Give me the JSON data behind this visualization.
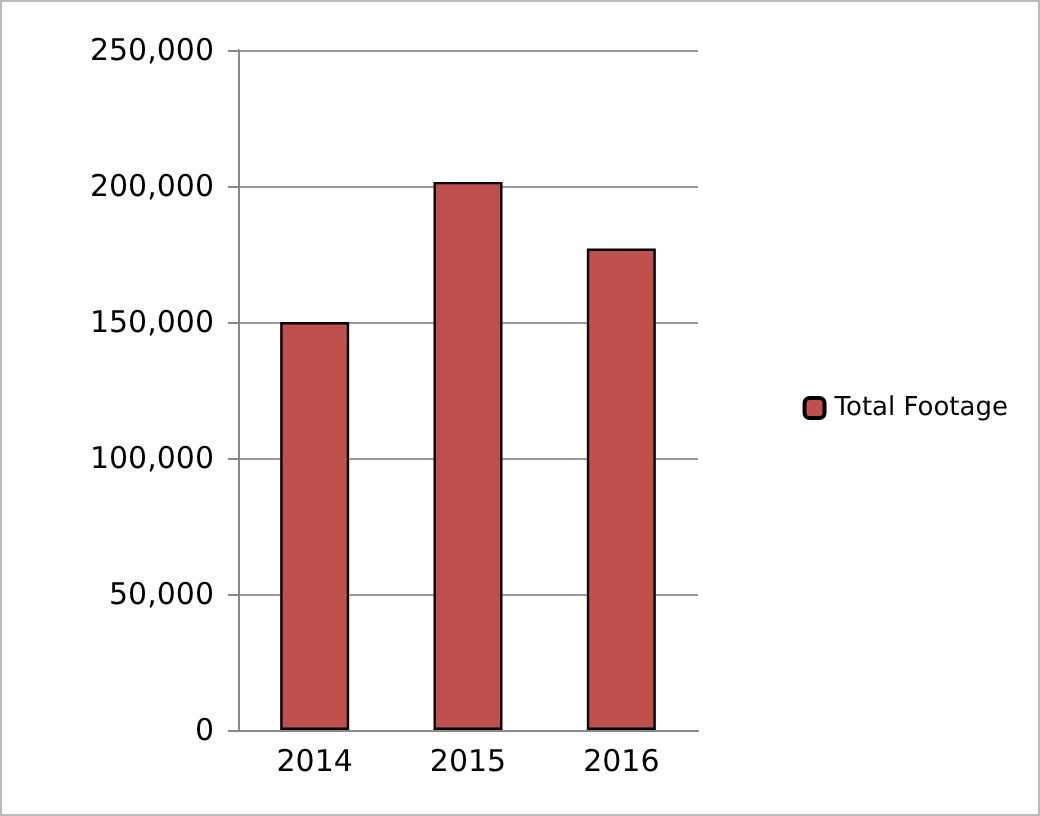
{
  "chart_data": {
    "type": "bar",
    "categories": [
      "2014",
      "2015",
      "2016"
    ],
    "series": [
      {
        "name": "Total Footage",
        "color": "#c0504d",
        "values": [
          150000,
          201500,
          177000
        ]
      }
    ],
    "ylim": [
      0,
      250000
    ],
    "yticks": [
      {
        "value": 0,
        "label": "0"
      },
      {
        "value": 50000,
        "label": "50,000"
      },
      {
        "value": 100000,
        "label": "100,000"
      },
      {
        "value": 150000,
        "label": "150,000"
      },
      {
        "value": 200000,
        "label": "200,000"
      },
      {
        "value": 250000,
        "label": "250,000"
      }
    ],
    "grid": "y",
    "legend": "right"
  }
}
